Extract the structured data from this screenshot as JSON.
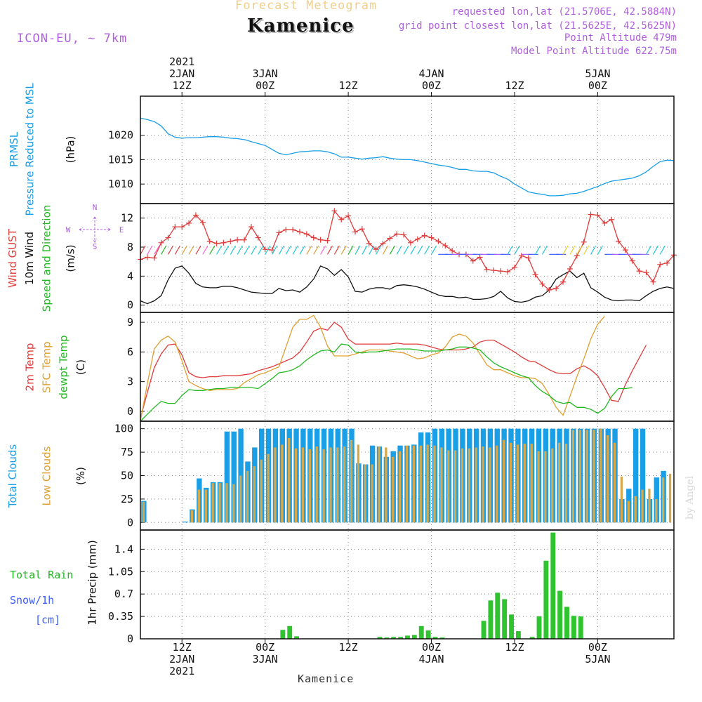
{
  "header": {
    "forecast_label": "Forecast Meteogram",
    "location": "Kamenice",
    "model": "ICON-EU, ~ 7km",
    "requested": "requested lon,lat (21.5706E, 42.5884N)",
    "grid_point": "grid point closest lon,lat (21.5625E, 42.5625N)",
    "point_altitude": "Point Altitude 479m",
    "model_altitude": "Model Point Altitude 622.75m",
    "credit": "by Angel",
    "footer": "Kamenice"
  },
  "time_axis": {
    "hours_start": 0,
    "hours_end": 77,
    "ticks": [
      {
        "hour": 6,
        "top": [
          "2021",
          "2JAN",
          "12Z"
        ],
        "bottom": [
          "12Z",
          "2JAN",
          "2021"
        ]
      },
      {
        "hour": 18,
        "top": [
          "",
          "3JAN",
          "00Z"
        ],
        "bottom": [
          "00Z",
          "3JAN"
        ]
      },
      {
        "hour": 30,
        "top": [
          "",
          "",
          "12Z"
        ],
        "bottom": [
          "12Z"
        ]
      },
      {
        "hour": 42,
        "top": [
          "",
          "4JAN",
          "00Z"
        ],
        "bottom": [
          "00Z",
          "4JAN"
        ]
      },
      {
        "hour": 54,
        "top": [
          "",
          "",
          "12Z"
        ],
        "bottom": [
          "12Z"
        ]
      },
      {
        "hour": 66,
        "top": [
          "",
          "5JAN",
          "00Z"
        ],
        "bottom": [
          "00Z",
          "5JAN"
        ]
      }
    ]
  },
  "panel_labels": {
    "pressure": [
      {
        "text": "PRMSL",
        "color": "#1a9ee6"
      },
      {
        "text": "Pressure Reduced to MSL",
        "color": "#1a9ee6"
      },
      {
        "text": "(hPa)",
        "color": "#111111"
      }
    ],
    "wind": [
      {
        "text": "Wind GUST",
        "color": "#e03c3c"
      },
      {
        "text": "10m Wind",
        "color": "#111111"
      },
      {
        "text": "Speed and Direction",
        "color": "#22b822"
      },
      {
        "text": "(m/s)",
        "color": "#111111"
      }
    ],
    "temp": [
      {
        "text": "2m Temp",
        "color": "#e03c3c"
      },
      {
        "text": "SFC Temp",
        "color": "#e0a030"
      },
      {
        "text": "dewpt Temp",
        "color": "#22b822"
      },
      {
        "text": "(C)",
        "color": "#111111"
      }
    ],
    "cloud": [
      {
        "text": "Total Clouds",
        "color": "#1a9ee6"
      },
      {
        "text": "Low Clouds",
        "color": "#e0a030"
      },
      {
        "text": "(%)",
        "color": "#111111"
      }
    ],
    "precip_unit": "1hr Precip (mm)",
    "rain": "Total   Rain",
    "snow": "Snow/1h",
    "snow_unit": "[cm]",
    "compass": {
      "n": "N",
      "s": "S",
      "w": "W",
      "e": "E"
    }
  },
  "colors": {
    "pressure": "#1a9ee6",
    "gust": "#e03c3c",
    "wind": "#111111",
    "t2m": "#e03c3c",
    "tsfc": "#e0a030",
    "dewpt": "#22b822",
    "total_cloud": "#1a9ee6",
    "low_cloud": "#d6a84a",
    "precip": "#2fc42f",
    "grid": "#888888"
  },
  "chart_data": [
    {
      "id": "pressure",
      "type": "line",
      "ylabel": "(hPa)",
      "ylim": [
        1006,
        1028
      ],
      "yticks": [
        1010,
        1015,
        1020
      ],
      "series": [
        {
          "name": "PRMSL",
          "x_start": 0,
          "x_step": 1,
          "values": [
            1023.5,
            1023.2,
            1022.8,
            1021.9,
            1020.3,
            1019.6,
            1019.4,
            1019.5,
            1019.5,
            1019.6,
            1019.7,
            1019.7,
            1019.6,
            1019.4,
            1019.3,
            1019.1,
            1018.7,
            1018.3,
            1017.9,
            1017.1,
            1016.3,
            1016.0,
            1016.3,
            1016.6,
            1016.7,
            1016.8,
            1016.8,
            1016.6,
            1016.2,
            1015.5,
            1015.5,
            1015.3,
            1015.1,
            1015.3,
            1015.4,
            1015.6,
            1015.3,
            1015.1,
            1015.0,
            1015.0,
            1014.8,
            1014.5,
            1014.2,
            1013.9,
            1013.7,
            1013.4,
            1013.0,
            1013.0,
            1012.7,
            1012.6,
            1012.6,
            1012.3,
            1011.6,
            1011.0,
            1010.0,
            1009.2,
            1008.4,
            1008.1,
            1007.9,
            1007.6,
            1007.6,
            1007.7,
            1008.0,
            1008.1,
            1008.5,
            1009.0,
            1009.5,
            1010.1,
            1010.6,
            1010.8,
            1011.0,
            1011.2,
            1011.7,
            1012.5,
            1013.6,
            1014.6,
            1014.9,
            1014.8
          ]
        }
      ]
    },
    {
      "id": "wind",
      "type": "line",
      "ylabel": "(m/s)",
      "ylim": [
        -1,
        14
      ],
      "yticks": [
        0,
        4,
        8,
        12
      ],
      "series": [
        {
          "name": "Wind GUST",
          "marker": "+",
          "x_start": 0,
          "x_step": 1,
          "values": [
            6.3,
            6.6,
            6.5,
            8.6,
            9.3,
            10.8,
            10.8,
            11.3,
            12.4,
            11.4,
            8.8,
            8.5,
            8.6,
            8.8,
            9.0,
            9.0,
            10.8,
            9.3,
            7.7,
            7.6,
            10.0,
            10.4,
            10.4,
            10.1,
            9.8,
            9.3,
            9.0,
            8.9,
            13.0,
            11.8,
            12.3,
            10.1,
            10.5,
            8.5,
            7.7,
            8.5,
            9.2,
            9.8,
            9.7,
            8.6,
            9.1,
            9.6,
            9.3,
            8.8,
            8.2,
            7.5,
            7.0,
            7.0,
            6.1,
            6.6,
            4.9,
            4.8,
            4.7,
            4.6,
            5.2,
            6.8,
            6.5,
            4.2,
            2.9,
            2.1,
            2.3,
            3.2,
            5.0,
            6.8,
            8.7,
            12.5,
            12.4,
            11.3,
            11.8,
            8.8,
            7.6,
            6.1,
            4.7,
            4.5,
            3.2,
            5.6,
            5.8,
            6.9
          ]
        },
        {
          "name": "10m Wind",
          "x_start": 0,
          "x_step": 1,
          "values": [
            0.6,
            0.2,
            0.6,
            1.3,
            3.5,
            5.1,
            5.4,
            4.4,
            3.0,
            2.5,
            2.4,
            2.4,
            2.6,
            2.6,
            2.4,
            2.1,
            1.8,
            1.7,
            1.6,
            1.6,
            2.3,
            2.0,
            2.1,
            1.8,
            2.5,
            3.6,
            5.4,
            5.0,
            4.1,
            4.9,
            3.9,
            1.9,
            1.8,
            2.2,
            2.4,
            2.4,
            2.2,
            2.7,
            2.8,
            2.7,
            2.5,
            2.2,
            1.8,
            1.4,
            1.2,
            1.2,
            1.0,
            1.1,
            0.8,
            0.8,
            0.9,
            1.2,
            1.9,
            1.0,
            0.5,
            0.4,
            0.6,
            1.1,
            1.3,
            2.1,
            3.6,
            4.2,
            4.7,
            3.8,
            4.4,
            2.4,
            1.8,
            1.1,
            0.7,
            0.6,
            0.7,
            0.7,
            0.6,
            1.3,
            1.9,
            2.3,
            2.5,
            2.3
          ]
        }
      ]
    },
    {
      "id": "temp",
      "type": "line",
      "ylabel": "(C)",
      "ylim": [
        -1,
        10
      ],
      "yticks": [
        0,
        3,
        6,
        9
      ],
      "series": [
        {
          "name": "2m Temp",
          "x_start": 0,
          "x_step": 1,
          "values": [
            -0.7,
            1.9,
            4.4,
            5.8,
            6.7,
            6.8,
            5.7,
            3.9,
            3.5,
            3.4,
            3.5,
            3.5,
            3.6,
            3.6,
            3.6,
            3.7,
            3.8,
            4.1,
            4.3,
            4.5,
            4.8,
            5.1,
            5.4,
            6.0,
            7.0,
            8.1,
            8.4,
            8.2,
            9.0,
            8.5,
            7.3,
            6.8,
            6.8,
            6.8,
            6.8,
            6.8,
            6.8,
            6.9,
            6.8,
            6.8,
            6.8,
            6.7,
            6.5,
            6.3,
            6.2,
            6.2,
            6.2,
            6.3,
            6.5,
            7.0,
            7.2,
            7.2,
            6.8,
            6.4,
            6.0,
            5.5,
            5.1,
            5.0,
            4.6,
            4.2,
            3.9,
            3.8,
            3.8,
            4.3,
            4.6,
            4.2,
            3.6,
            2.4,
            1.1,
            1.0,
            2.7,
            4.1,
            5.4,
            6.7
          ]
        },
        {
          "name": "SFC Temp",
          "x_start": 0,
          "x_step": 1,
          "values": [
            -1.0,
            2.8,
            6.3,
            7.2,
            7.6,
            7.0,
            5.1,
            3.0,
            2.6,
            2.3,
            2.1,
            2.2,
            2.2,
            2.2,
            2.3,
            2.9,
            3.3,
            3.7,
            3.9,
            4.2,
            4.5,
            6.5,
            8.5,
            9.3,
            9.3,
            9.7,
            8.5,
            6.6,
            5.6,
            5.6,
            5.6,
            5.8,
            6.0,
            6.2,
            6.2,
            6.2,
            6.1,
            6.0,
            5.9,
            5.6,
            5.3,
            5.4,
            5.7,
            5.9,
            6.5,
            7.5,
            7.8,
            7.6,
            6.9,
            5.8,
            4.7,
            4.2,
            4.2,
            3.9,
            3.6,
            3.4,
            3.4,
            3.3,
            2.8,
            1.7,
            0.4,
            -0.4,
            1.5,
            3.5,
            5.3,
            7.3,
            8.8,
            9.6
          ]
        },
        {
          "name": "dewpt Temp",
          "x_start": 0,
          "x_step": 1,
          "values": [
            -1.0,
            -0.3,
            0.4,
            1.0,
            0.8,
            0.8,
            1.6,
            2.2,
            2.1,
            2.1,
            2.2,
            2.3,
            2.3,
            2.4,
            2.4,
            2.4,
            2.4,
            2.3,
            2.8,
            3.3,
            3.9,
            4.0,
            4.2,
            4.6,
            5.2,
            5.7,
            6.1,
            6.2,
            6.0,
            6.8,
            6.7,
            6.0,
            5.9,
            6.0,
            6.0,
            6.1,
            6.2,
            6.3,
            6.3,
            6.3,
            6.2,
            6.1,
            6.1,
            6.1,
            6.2,
            6.3,
            6.5,
            6.5,
            6.4,
            6.2,
            5.5,
            4.9,
            4.5,
            4.2,
            3.9,
            3.6,
            3.4,
            2.6,
            2.0,
            1.6,
            1.0,
            0.8,
            0.9,
            0.4,
            0.4,
            0.2,
            -0.2,
            0.3,
            1.5,
            2.3,
            2.3,
            2.4
          ]
        }
      ]
    },
    {
      "id": "cloud",
      "type": "bar",
      "ylabel": "(%)",
      "ylim": [
        -8,
        108
      ],
      "yticks": [
        0,
        25,
        50,
        75,
        100
      ],
      "series": [
        {
          "name": "Total Clouds",
          "x_start": 0,
          "x_step": 1,
          "values": [
            23,
            0,
            0,
            0,
            0,
            0,
            1,
            14,
            47,
            37,
            43,
            43,
            97,
            97,
            100,
            65,
            80,
            100,
            100,
            100,
            100,
            100,
            100,
            100,
            100,
            100,
            100,
            100,
            100,
            100,
            100,
            63,
            62,
            82,
            81,
            70,
            76,
            82,
            82,
            83,
            96,
            96,
            100,
            100,
            100,
            100,
            100,
            100,
            100,
            100,
            100,
            100,
            100,
            100,
            100,
            100,
            100,
            100,
            100,
            100,
            100,
            100,
            100,
            100,
            100,
            100,
            100,
            100,
            100,
            25,
            36,
            100,
            100,
            25,
            48,
            55
          ]
        },
        {
          "name": "Low Clouds",
          "x_start": 0,
          "x_step": 1,
          "values": [
            22,
            0,
            0,
            0,
            0,
            0,
            0,
            13,
            35,
            35,
            42,
            42,
            42,
            41,
            50,
            55,
            60,
            67,
            73,
            80,
            83,
            90,
            79,
            80,
            78,
            81,
            78,
            80,
            80,
            81,
            88,
            83,
            62,
            62,
            81,
            80,
            70,
            76,
            82,
            82,
            82,
            83,
            82,
            80,
            77,
            77,
            79,
            79,
            80,
            81,
            80,
            82,
            88,
            85,
            83,
            84,
            84,
            76,
            76,
            79,
            85,
            84,
            99,
            99,
            99,
            99,
            100,
            93,
            85,
            49,
            23,
            28,
            35,
            36,
            25,
            48,
            52
          ]
        }
      ]
    },
    {
      "id": "precip",
      "type": "bar",
      "ylabel": "1hr Precip (mm)",
      "ylim": [
        0,
        1.7
      ],
      "yticks": [
        0,
        0.35,
        0.7,
        1.05,
        1.4
      ],
      "ytick_labels": [
        "0",
        "0.35",
        "0.7",
        "1.05",
        "1.4"
      ],
      "series": [
        {
          "name": "Total Rain",
          "x_start": 0,
          "x_step": 1,
          "values": [
            0,
            0,
            0,
            0,
            0,
            0,
            0,
            0,
            0,
            0,
            0,
            0,
            0,
            0,
            0,
            0,
            0,
            0,
            0,
            0,
            0.14,
            0.2,
            0.04,
            0,
            0,
            0,
            0,
            0,
            0,
            0,
            0,
            0,
            0,
            0,
            0.03,
            0.02,
            0.03,
            0.03,
            0.05,
            0.06,
            0.2,
            0.13,
            0.03,
            0.02,
            0,
            0,
            0,
            0,
            0,
            0.28,
            0.6,
            0.72,
            0.62,
            0.38,
            0.12,
            0,
            0.03,
            0.35,
            1.22,
            1.66,
            0.75,
            0.5,
            0.36,
            0.35
          ]
        }
      ]
    }
  ]
}
